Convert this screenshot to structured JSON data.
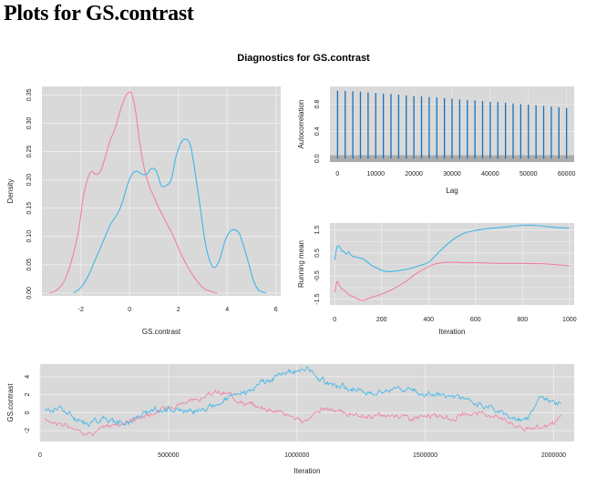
{
  "page": {
    "heading": "Plots for GS.contrast",
    "suptitle": "Diagnostics for GS.contrast"
  },
  "colors": {
    "panel_bg": "#d9d9d9",
    "grid": "#ececec",
    "chain1": "#f0829e",
    "chain2": "#41b6e6",
    "acf": "#1a6fb5",
    "acf_band": "#a6a6a6"
  },
  "chart_data": [
    {
      "type": "line",
      "name": "density",
      "xlabel": "GS.contrast",
      "ylabel": "Density",
      "xlim": [
        -3.6,
        6.2
      ],
      "ylim": [
        -0.005,
        0.365
      ],
      "xticks": [
        -2,
        0,
        2,
        4,
        6
      ],
      "yticks": [
        0.0,
        0.05,
        0.1,
        0.15,
        0.2,
        0.25,
        0.3,
        0.35
      ],
      "ytick_labels": [
        "0.00",
        "0.05",
        "0.10",
        "0.15",
        "0.20",
        "0.25",
        "0.30",
        "0.35"
      ],
      "grid": true,
      "series": [
        {
          "color": "chain1",
          "x": [
            -3.3,
            -3.0,
            -2.7,
            -2.4,
            -2.1,
            -1.9,
            -1.7,
            -1.55,
            -1.4,
            -1.2,
            -1.0,
            -0.8,
            -0.6,
            -0.4,
            -0.2,
            0.0,
            0.1,
            0.25,
            0.4,
            0.6,
            0.8,
            1.0,
            1.2,
            1.5,
            1.8,
            2.1,
            2.4,
            2.7,
            3.0,
            3.3,
            3.6
          ],
          "y": [
            0.0,
            0.005,
            0.02,
            0.055,
            0.11,
            0.17,
            0.205,
            0.215,
            0.21,
            0.215,
            0.24,
            0.27,
            0.29,
            0.32,
            0.345,
            0.355,
            0.35,
            0.32,
            0.27,
            0.22,
            0.19,
            0.17,
            0.15,
            0.125,
            0.1,
            0.07,
            0.045,
            0.025,
            0.01,
            0.003,
            0.0
          ]
        },
        {
          "color": "chain2",
          "x": [
            -2.3,
            -2.0,
            -1.7,
            -1.4,
            -1.1,
            -0.8,
            -0.5,
            -0.3,
            -0.1,
            0.1,
            0.3,
            0.5,
            0.7,
            0.9,
            1.1,
            1.3,
            1.5,
            1.7,
            1.9,
            2.1,
            2.3,
            2.5,
            2.7,
            2.9,
            3.1,
            3.3,
            3.5,
            3.7,
            3.9,
            4.1,
            4.3,
            4.5,
            4.7,
            4.9,
            5.1,
            5.3,
            5.6
          ],
          "y": [
            0.0,
            0.01,
            0.03,
            0.06,
            0.09,
            0.12,
            0.14,
            0.16,
            0.19,
            0.21,
            0.215,
            0.21,
            0.21,
            0.22,
            0.215,
            0.19,
            0.19,
            0.2,
            0.24,
            0.265,
            0.272,
            0.26,
            0.21,
            0.15,
            0.09,
            0.055,
            0.045,
            0.06,
            0.09,
            0.108,
            0.112,
            0.105,
            0.08,
            0.05,
            0.02,
            0.005,
            0.0
          ]
        }
      ]
    },
    {
      "type": "bar",
      "name": "autocorrelation",
      "xlabel": "Lag",
      "ylabel": "Autocorrelation",
      "xlim": [
        -2000,
        62000
      ],
      "ylim": [
        -0.05,
        1.06
      ],
      "xticks": [
        0,
        10000,
        20000,
        30000,
        40000,
        50000,
        60000
      ],
      "yticks": [
        0.0,
        0.4,
        0.8
      ],
      "ytick_labels": [
        "0.0",
        "0.4",
        "0.8"
      ],
      "band": [
        -0.05,
        0.05
      ],
      "lags": [
        0,
        2000,
        4000,
        6000,
        8000,
        10000,
        12000,
        14000,
        16000,
        18000,
        20000,
        22000,
        24000,
        26000,
        28000,
        30000,
        32000,
        34000,
        36000,
        38000,
        40000,
        42000,
        44000,
        46000,
        48000,
        50000,
        52000,
        54000,
        56000,
        58000,
        60000
      ],
      "values": [
        1.0,
        0.995,
        0.99,
        0.985,
        0.975,
        0.965,
        0.955,
        0.95,
        0.94,
        0.93,
        0.92,
        0.915,
        0.905,
        0.9,
        0.89,
        0.88,
        0.87,
        0.86,
        0.855,
        0.845,
        0.835,
        0.83,
        0.82,
        0.81,
        0.8,
        0.795,
        0.785,
        0.775,
        0.765,
        0.755,
        0.745
      ]
    },
    {
      "type": "line",
      "name": "running-mean",
      "xlabel": "Iteration",
      "ylabel": "Running mean",
      "xlim": [
        -20,
        1020
      ],
      "ylim": [
        -1.75,
        1.8
      ],
      "xticks": [
        0,
        200,
        400,
        600,
        800,
        1000
      ],
      "yticks": [
        -1.5,
        -0.5,
        0.5,
        1.5
      ],
      "ytick_labels": [
        "-1.5",
        "-0.5",
        "0.5",
        "1.5"
      ],
      "extra_yticks": [
        -1.0,
        0.0,
        1.0
      ],
      "grid": true,
      "series": [
        {
          "color": "chain1",
          "x": [
            1,
            10,
            20,
            30,
            40,
            50,
            60,
            80,
            100,
            120,
            150,
            180,
            220,
            260,
            300,
            340,
            380,
            420,
            460,
            500,
            550,
            600,
            700,
            800,
            900,
            1000
          ],
          "y": [
            -1.2,
            -0.75,
            -0.9,
            -1.05,
            -1.1,
            -1.2,
            -1.3,
            -1.4,
            -1.5,
            -1.55,
            -1.45,
            -1.35,
            -1.2,
            -1.0,
            -0.75,
            -0.45,
            -0.2,
            0.0,
            0.08,
            0.1,
            0.08,
            0.08,
            0.05,
            0.05,
            0.03,
            -0.05
          ]
        },
        {
          "color": "chain2",
          "x": [
            1,
            5,
            10,
            20,
            30,
            40,
            50,
            60,
            70,
            80,
            100,
            120,
            140,
            160,
            180,
            200,
            220,
            250,
            280,
            300,
            330,
            360,
            400,
            450,
            500,
            550,
            600,
            650,
            700,
            750,
            800,
            850,
            900,
            950,
            1000
          ],
          "y": [
            0.2,
            0.5,
            0.75,
            0.8,
            0.6,
            0.55,
            0.45,
            0.55,
            0.4,
            0.35,
            0.3,
            0.25,
            0.1,
            -0.05,
            -0.15,
            -0.25,
            -0.3,
            -0.3,
            -0.25,
            -0.22,
            -0.15,
            -0.05,
            0.1,
            0.6,
            1.05,
            1.35,
            1.48,
            1.55,
            1.6,
            1.65,
            1.7,
            1.7,
            1.65,
            1.6,
            1.58
          ]
        }
      ]
    },
    {
      "type": "line",
      "name": "trace",
      "xlabel": "Iteration",
      "ylabel": "GS.contrast",
      "xlim": [
        0,
        2080000
      ],
      "ylim": [
        -3.2,
        5.4
      ],
      "xticks": [
        0,
        500000,
        1000000,
        1500000,
        2000000
      ],
      "xtick_labels": [
        "0",
        "500000",
        "1000000",
        "1500000",
        "2000000"
      ],
      "yticks": [
        -2,
        0,
        2,
        4
      ],
      "grid": true,
      "noise": [
        [
          0.25,
          0.55,
          0.85
        ],
        [
          0.35,
          0.65,
          0.5
        ]
      ],
      "series": [
        {
          "color": "chain1",
          "x": [
            20000,
            80000,
            140000,
            200000,
            260000,
            320000,
            380000,
            440000,
            500000,
            560000,
            620000,
            680000,
            740000,
            800000,
            860000,
            920000,
            980000,
            1020000,
            1060000,
            1100000,
            1150000,
            1200000,
            1250000,
            1300000,
            1350000,
            1400000,
            1450000,
            1500000,
            1550000,
            1600000,
            1650000,
            1700000,
            1750000,
            1800000,
            1850000,
            1900000,
            1950000,
            2000000,
            2030000
          ],
          "y": [
            -0.8,
            -1.2,
            -2.0,
            -2.3,
            -1.5,
            -1.2,
            -0.6,
            0.0,
            0.6,
            1.2,
            1.5,
            2.2,
            2.0,
            1.0,
            0.6,
            0.2,
            -0.4,
            -1.1,
            -0.3,
            0.5,
            0.2,
            -0.3,
            -0.6,
            -0.3,
            -0.4,
            -0.2,
            -0.6,
            -0.5,
            -0.3,
            -0.7,
            -0.2,
            -0.1,
            -0.2,
            -0.5,
            -1.4,
            -1.8,
            -1.6,
            -1.2,
            -0.4
          ]
        },
        {
          "color": "chain2",
          "x": [
            20000,
            80000,
            140000,
            200000,
            260000,
            320000,
            380000,
            440000,
            500000,
            560000,
            620000,
            680000,
            740000,
            800000,
            860000,
            920000,
            980000,
            1020000,
            1040000,
            1080000,
            1120000,
            1160000,
            1200000,
            1250000,
            1300000,
            1350000,
            1400000,
            1450000,
            1500000,
            1550000,
            1600000,
            1650000,
            1700000,
            1750000,
            1800000,
            1850000,
            1900000,
            1950000,
            2000000,
            2030000
          ],
          "y": [
            0.3,
            0.6,
            -0.8,
            -1.1,
            -0.6,
            -1.2,
            -0.5,
            0.4,
            0.4,
            0.2,
            0.3,
            0.8,
            1.6,
            2.2,
            3.4,
            4.0,
            4.6,
            4.7,
            5.0,
            3.8,
            3.3,
            3.0,
            2.7,
            2.4,
            2.2,
            2.5,
            2.7,
            2.6,
            2.1,
            2.0,
            1.8,
            1.5,
            0.9,
            0.6,
            0.0,
            -0.8,
            -0.6,
            1.6,
            1.2,
            0.9
          ]
        }
      ]
    }
  ]
}
